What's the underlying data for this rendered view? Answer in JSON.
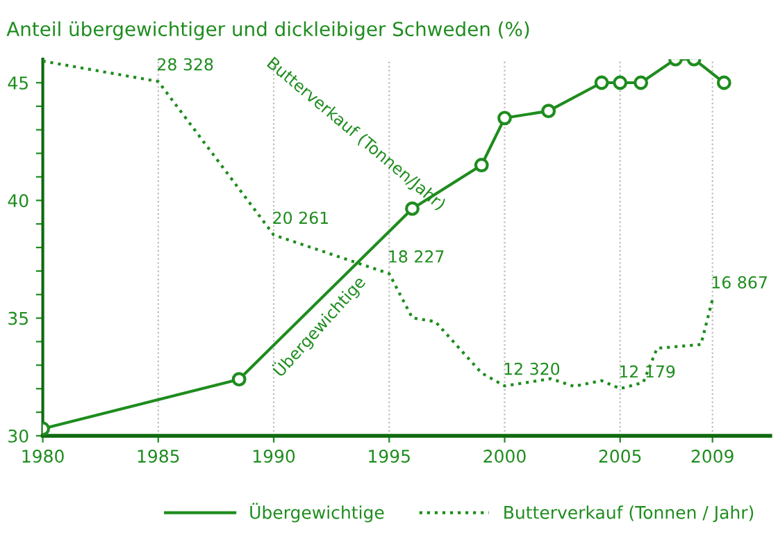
{
  "chart_data": {
    "type": "line",
    "title": "Anteil übergewichtiger und dickleibiger Schweden (%)",
    "xlim": [
      1980,
      2011.5
    ],
    "xticks": [
      1980,
      1985,
      1990,
      1995,
      2000,
      2005,
      2009
    ],
    "ylim": [
      30,
      46
    ],
    "yticks": [
      30,
      {
        "value": 31,
        "label": null
      },
      {
        "value": 32,
        "label": null
      },
      {
        "value": 33,
        "label": null
      },
      {
        "value": 34,
        "label": null
      },
      35,
      {
        "value": 36,
        "label": null
      },
      {
        "value": 37,
        "label": null
      },
      {
        "value": 38,
        "label": null
      },
      {
        "value": 39,
        "label": null
      },
      40,
      {
        "value": 41,
        "label": null
      },
      {
        "value": 42,
        "label": null
      },
      {
        "value": 43,
        "label": null
      },
      {
        "value": 44,
        "label": null
      },
      45
    ],
    "y2lim": [
      9700,
      29500
    ],
    "grid": "x",
    "legend": "bottom",
    "series": [
      {
        "name": "Übergewichtige",
        "color": "#1e8c1e",
        "marker": "circle",
        "line_style": "solid",
        "x": [
          1980,
          1988.5,
          1996,
          1999,
          2000,
          2001.9,
          2004.2,
          2005,
          2005.9,
          2007.4,
          2008.2,
          2009.5
        ],
        "values": [
          30.3,
          32.4,
          39.65,
          41.5,
          43.5,
          43.8,
          45,
          45,
          45,
          46,
          46,
          45
        ]
      },
      {
        "name": "Butterverkauf (Tonnen / Jahr)",
        "color": "#1e8c1e",
        "marker": "none",
        "line_style": "dotted",
        "axis": "y2",
        "x": [
          1980,
          1985,
          1990,
          1995,
          1996,
          1997,
          1999,
          2000,
          2002,
          2003,
          2004.2,
          2005,
          2006,
          2006.6,
          2008.5,
          2009
        ],
        "values": [
          29400,
          28328,
          20261,
          18227,
          15900,
          15700,
          13000,
          12320,
          12700,
          12300,
          12600,
          12179,
          12500,
          14300,
          14500,
          16867
        ],
        "value_labels": [
          null,
          "28 328",
          "20 261",
          "18 227",
          null,
          null,
          null,
          "12 320",
          null,
          null,
          null,
          "12 179",
          null,
          null,
          null,
          "16 867"
        ]
      }
    ],
    "annotations": [
      "Butterverkauf (Tonnen/Jahr)",
      "Übergewichtige"
    ]
  }
}
